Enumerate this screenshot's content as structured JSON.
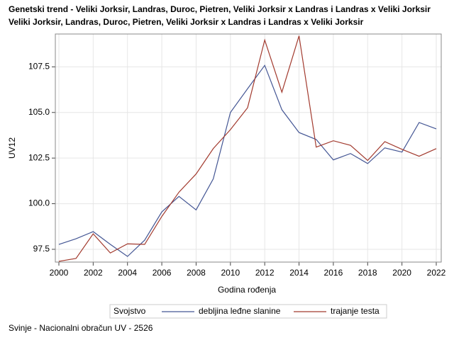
{
  "chart_data": {
    "type": "line",
    "title": [
      "Genetski trend - Veliki Jorksir, Landras, Duroc, Pietren, Veliki Jorksir x Landras i Landras x Veliki Jorksir",
      "Veliki Jorksir, Landras, Duroc, Pietren, Veliki Jorksir x Landras i Landras x Veliki Jorksir"
    ],
    "x_label": "Godina rođenja",
    "y_label": "UV12",
    "legend_title": "Svojstvo",
    "footnote": "Svinje - Nacionalni obračun UV - 2526",
    "x": [
      2000,
      2001,
      2002,
      2003,
      2004,
      2005,
      2006,
      2007,
      2008,
      2009,
      2010,
      2011,
      2012,
      2013,
      2014,
      2015,
      2016,
      2017,
      2018,
      2019,
      2020,
      2021,
      2022
    ],
    "series": [
      {
        "name": "debljina leđne slanine",
        "color": "#445694",
        "values": [
          97.77,
          98.08,
          98.47,
          97.77,
          97.11,
          98.0,
          99.55,
          100.4,
          99.66,
          101.36,
          105.0,
          106.3,
          107.58,
          105.15,
          103.9,
          103.52,
          102.4,
          102.75,
          102.2,
          103.06,
          102.83,
          104.45,
          104.1
        ]
      },
      {
        "name": "trajanje testa",
        "color": "#a23a2e",
        "values": [
          96.84,
          97.0,
          98.35,
          97.3,
          97.8,
          97.77,
          99.3,
          100.63,
          101.63,
          103.02,
          104.06,
          105.26,
          108.97,
          106.11,
          109.2,
          103.1,
          103.45,
          103.2,
          102.37,
          103.4,
          102.98,
          102.6,
          103.02
        ]
      }
    ],
    "xlim": [
      2000,
      2022
    ],
    "xticks": [
      2000,
      2002,
      2004,
      2006,
      2008,
      2010,
      2012,
      2014,
      2016,
      2018,
      2020,
      2022
    ],
    "ylim": [
      96.8,
      109.3
    ],
    "yticks": [
      {
        "value": 97.5,
        "label": "97.5"
      },
      {
        "value": 100,
        "label": "100.0"
      },
      {
        "value": 102.5,
        "label": "102.5"
      },
      {
        "value": 105,
        "label": "105.0"
      },
      {
        "value": 107.5,
        "label": "107.5"
      }
    ],
    "grid": true
  }
}
